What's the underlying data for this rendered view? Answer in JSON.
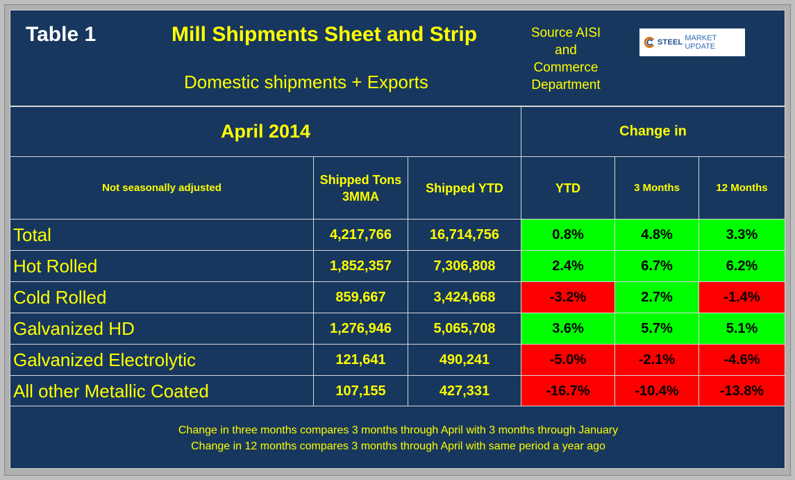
{
  "header": {
    "table_label": "Table 1",
    "title": "Mill Shipments Sheet and Strip",
    "subtitle": "Domestic shipments + Exports",
    "source_lines": [
      "Source AISI",
      "and",
      "Commerce",
      "Department"
    ],
    "logo_strong": "STEEL",
    "logo_soft": "MARKET UPDATE"
  },
  "chart_data": {
    "type": "table",
    "title": "Mill Shipments Sheet and Strip",
    "period": "April 2014",
    "change_header": "Change in",
    "columns": {
      "label": "Not seasonally adjusted",
      "shipped_3mma": "Shipped Tons 3MMA",
      "shipped_ytd": "Shipped YTD",
      "ytd": "YTD",
      "m3": "3 Months",
      "m12": "12 Months"
    },
    "rows": [
      {
        "label": "Total",
        "shipped_3mma": "4,217,766",
        "shipped_ytd": "16,714,756",
        "ytd": "0.8%",
        "m3": "4.8%",
        "m12": "3.3%"
      },
      {
        "label": "Hot Rolled",
        "shipped_3mma": "1,852,357",
        "shipped_ytd": "7,306,808",
        "ytd": "2.4%",
        "m3": "6.7%",
        "m12": "6.2%"
      },
      {
        "label": "Cold Rolled",
        "shipped_3mma": "859,667",
        "shipped_ytd": "3,424,668",
        "ytd": "-3.2%",
        "m3": "2.7%",
        "m12": "-1.4%"
      },
      {
        "label": "Galvanized HD",
        "shipped_3mma": "1,276,946",
        "shipped_ytd": "5,065,708",
        "ytd": "3.6%",
        "m3": "5.7%",
        "m12": "5.1%"
      },
      {
        "label": "Galvanized Electrolytic",
        "shipped_3mma": "121,641",
        "shipped_ytd": "490,241",
        "ytd": "-5.0%",
        "m3": "-2.1%",
        "m12": "-4.6%"
      },
      {
        "label": "All other Metallic Coated",
        "shipped_3mma": "107,155",
        "shipped_ytd": "427,331",
        "ytd": "-16.7%",
        "m3": "-10.4%",
        "m12": "-13.8%"
      }
    ],
    "colors": {
      "positive": "#00ff00",
      "negative": "#ff0000",
      "background": "#17375e",
      "text": "#ffff00"
    }
  },
  "footer": {
    "note_1": "Change in three months compares 3 months through April with 3 months through January",
    "note_2": "Change in 12 months compares 3 months through April with same period a year ago"
  }
}
